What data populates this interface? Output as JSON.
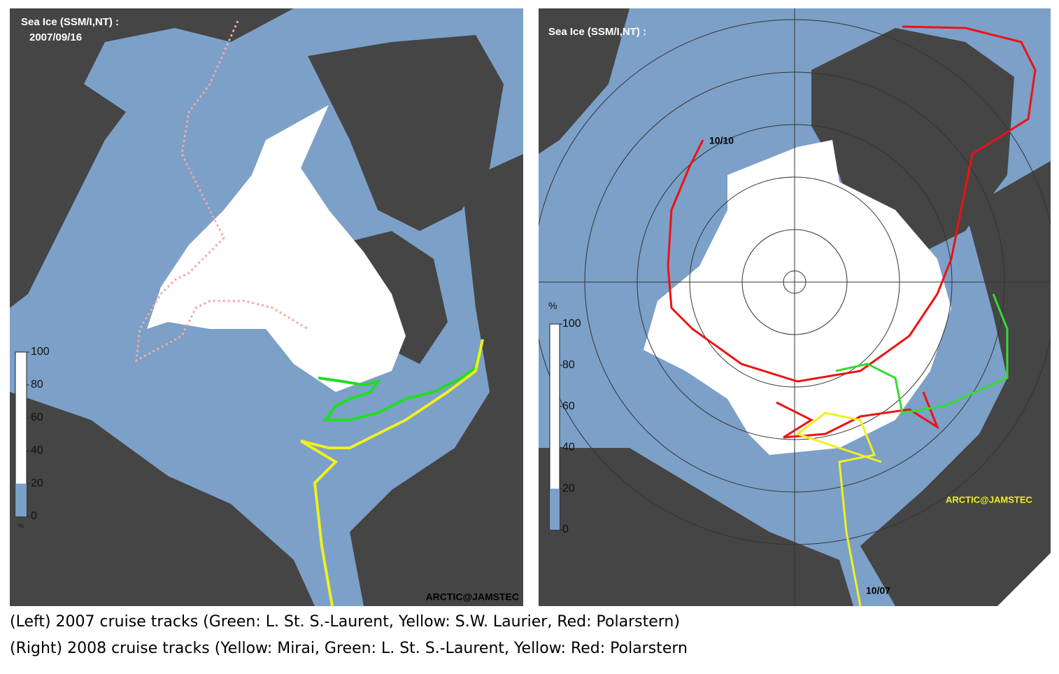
{
  "panels": [
    {
      "title": "Sea Ice (SSM/I,NT) :",
      "date": "2007/09/16",
      "colorbar": {
        "unit": "%",
        "ticks": [
          0,
          20,
          40,
          60,
          80,
          100
        ]
      },
      "credit": "ARCTIC@JAMSTEC"
    },
    {
      "title": "Sea Ice (SSM/I,NT) :",
      "colorbar": {
        "unit": "%",
        "ticks": [
          0,
          20,
          40,
          60,
          80,
          100
        ]
      },
      "credit": "ARCTIC@JAMSTEC",
      "track_labels": [
        "10/10",
        "10/07"
      ]
    }
  ],
  "captions": [
    "(Left) 2007 cruise tracks (Green: L. St. S.-Laurent, Yellow: S.W. Laurier, Red: Polarstern)",
    "(Right) 2008 cruise tracks (Yellow: Mirai, Green: L. St. S.-Laurent, Yellow: Red: Polarstern"
  ]
}
